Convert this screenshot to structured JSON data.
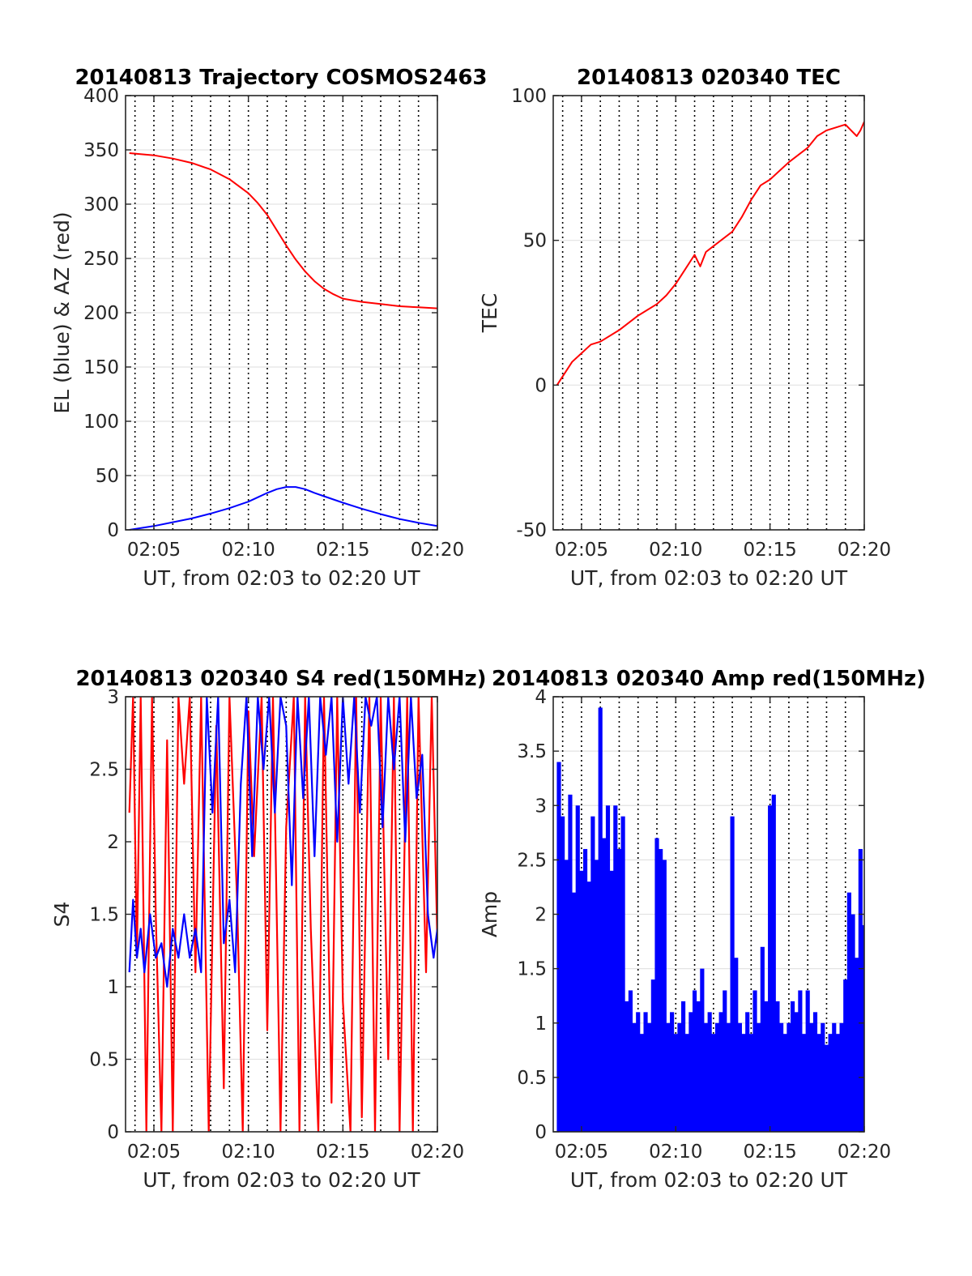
{
  "chart_data": [
    {
      "type": "line",
      "title": "20140813 Trajectory COSMOS2463",
      "xlabel": "UT, from 02:03 to 02:20 UT",
      "ylabel": "EL (blue) & AZ (red)",
      "x_tick_labels": [
        "02:05",
        "02:10",
        "02:15",
        "02:20"
      ],
      "x_tick_minutes": [
        5,
        10,
        15,
        20
      ],
      "xlim_minutes": [
        3.5,
        20.0
      ],
      "ylim": [
        0,
        400
      ],
      "y_ticks": [
        0,
        50,
        100,
        150,
        200,
        250,
        300,
        350,
        400
      ],
      "grid": true,
      "series": [
        {
          "color": "#ff0000",
          "x": [
            3.7,
            5,
            6,
            7,
            8,
            9,
            10,
            10.5,
            11,
            11.5,
            12,
            12.5,
            13,
            13.5,
            14,
            14.5,
            15,
            16,
            17,
            18,
            19,
            20
          ],
          "values": [
            347,
            345,
            342,
            338,
            332,
            323,
            310,
            301,
            290,
            276,
            262,
            249,
            238,
            229,
            222,
            217,
            213,
            210,
            208,
            206,
            205,
            204
          ]
        },
        {
          "color": "#0000ff",
          "x": [
            3.7,
            5,
            6,
            7,
            8,
            9,
            10,
            10.5,
            11,
            11.5,
            12,
            12.5,
            13,
            13.5,
            14,
            15,
            16,
            17,
            18,
            19,
            20
          ],
          "values": [
            0,
            3.5,
            7,
            10.5,
            15,
            20,
            26,
            30,
            34,
            37.5,
            39.5,
            39.5,
            37.5,
            34,
            31,
            25,
            19.5,
            14.5,
            10,
            6.5,
            3.5
          ]
        }
      ]
    },
    {
      "type": "line",
      "title": "20140813 020340 TEC",
      "xlabel": "UT, from 02:03 to 02:20 UT",
      "ylabel": "TEC",
      "x_tick_labels": [
        "02:05",
        "02:10",
        "02:15",
        "02:20"
      ],
      "x_tick_minutes": [
        5,
        10,
        15,
        20
      ],
      "xlim_minutes": [
        3.5,
        20.0
      ],
      "ylim": [
        -50,
        100
      ],
      "y_ticks": [
        -50,
        0,
        50,
        100
      ],
      "grid": true,
      "series": [
        {
          "color": "#ff0000",
          "x": [
            3.7,
            4.5,
            5.0,
            5.5,
            6.0,
            7.0,
            8.0,
            9.0,
            9.5,
            10.0,
            10.5,
            11.0,
            11.3,
            11.6,
            12.0,
            13.0,
            13.5,
            14.0,
            14.5,
            15.0,
            16.0,
            17.0,
            17.5,
            18.0,
            18.5,
            19.0,
            19.3,
            19.6,
            19.8,
            20.0
          ],
          "values": [
            0,
            8,
            11,
            14,
            15,
            19,
            24,
            28,
            31,
            35,
            40,
            45,
            41,
            46,
            48,
            53,
            58,
            64,
            69,
            71,
            77,
            82,
            86,
            88,
            89,
            90,
            88,
            86,
            88,
            91
          ]
        }
      ]
    },
    {
      "type": "line",
      "title": "20140813 020340 S4 red(150MHz)",
      "xlabel": "UT, from 02:03 to 02:20 UT",
      "ylabel": "S4",
      "x_tick_labels": [
        "02:05",
        "02:10",
        "02:15",
        "02:20"
      ],
      "x_tick_minutes": [
        5,
        10,
        15,
        20
      ],
      "xlim_minutes": [
        3.5,
        20.0
      ],
      "ylim": [
        0,
        3
      ],
      "y_ticks": [
        0,
        0.5,
        1,
        1.5,
        2,
        2.5,
        3
      ],
      "grid": true,
      "series": [
        {
          "color": "#ff0000",
          "x": [
            3.7,
            3.9,
            4.1,
            4.3,
            4.6,
            4.9,
            5.1,
            5.4,
            5.7,
            6.0,
            6.3,
            6.6,
            6.9,
            7.2,
            7.5,
            7.9,
            8.3,
            8.7,
            9.0,
            9.4,
            9.7,
            10.0,
            10.3,
            10.7,
            11.0,
            11.3,
            11.7,
            12.0,
            12.4,
            12.7,
            13.0,
            13.3,
            13.7,
            14.0,
            14.4,
            14.7,
            15.0,
            15.4,
            15.7,
            16.0,
            16.4,
            16.7,
            17.0,
            17.4,
            17.7,
            18.0,
            18.4,
            18.7,
            19.0,
            19.4,
            19.7,
            20.0
          ],
          "values": [
            2.2,
            3.0,
            1.2,
            3.0,
            0.0,
            3.0,
            1.5,
            0.0,
            2.7,
            0.0,
            3.0,
            2.4,
            3.0,
            1.1,
            3.0,
            0.0,
            2.8,
            0.3,
            3.0,
            1.6,
            0.0,
            2.9,
            1.9,
            3.0,
            0.7,
            3.0,
            0.0,
            2.1,
            3.0,
            0.0,
            3.0,
            1.4,
            0.0,
            3.0,
            0.2,
            3.0,
            0.9,
            0.0,
            3.0,
            0.1,
            3.0,
            0.0,
            3.0,
            0.5,
            3.0,
            0.0,
            3.0,
            0.0,
            3.0,
            1.1,
            3.0,
            1.3
          ]
        },
        {
          "color": "#0000ff",
          "x": [
            3.7,
            3.9,
            4.1,
            4.3,
            4.5,
            4.8,
            5.1,
            5.4,
            5.7,
            6.0,
            6.3,
            6.6,
            6.9,
            7.2,
            7.5,
            7.8,
            8.1,
            8.4,
            8.7,
            9.0,
            9.3,
            9.6,
            9.9,
            10.2,
            10.5,
            10.8,
            11.1,
            11.4,
            11.7,
            12.0,
            12.3,
            12.6,
            12.9,
            13.2,
            13.5,
            13.8,
            14.1,
            14.4,
            14.7,
            15.0,
            15.3,
            15.6,
            15.9,
            16.2,
            16.5,
            16.8,
            17.1,
            17.4,
            17.7,
            18.0,
            18.3,
            18.6,
            18.9,
            19.2,
            19.5,
            19.8,
            20.0
          ],
          "values": [
            1.1,
            1.6,
            1.2,
            1.4,
            1.1,
            1.5,
            1.2,
            1.3,
            1.0,
            1.4,
            1.2,
            1.5,
            1.2,
            1.4,
            1.1,
            3.0,
            2.2,
            3.0,
            1.3,
            1.6,
            1.1,
            2.4,
            3.0,
            1.9,
            3.0,
            2.5,
            3.0,
            2.2,
            3.0,
            2.8,
            1.7,
            3.0,
            2.3,
            3.0,
            1.9,
            3.0,
            2.6,
            3.0,
            2.0,
            3.0,
            2.4,
            3.0,
            2.2,
            3.0,
            2.8,
            3.0,
            2.1,
            3.0,
            2.5,
            3.0,
            2.0,
            3.0,
            2.3,
            2.6,
            1.5,
            1.2,
            1.4
          ]
        }
      ]
    },
    {
      "type": "bar",
      "title": "20140813 020340 Amp red(150MHz)",
      "xlabel": "UT, from 02:03 to 02:20 UT",
      "ylabel": "Amp",
      "x_tick_labels": [
        "02:05",
        "02:10",
        "02:15",
        "02:20"
      ],
      "x_tick_minutes": [
        5,
        10,
        15,
        20
      ],
      "xlim_minutes": [
        3.5,
        20.0
      ],
      "ylim": [
        0,
        4
      ],
      "y_ticks": [
        0,
        0.5,
        1,
        1.5,
        2,
        2.5,
        3,
        3.5,
        4
      ],
      "grid": true,
      "series": [
        {
          "color": "#0000ff",
          "x": [
            3.8,
            4.0,
            4.2,
            4.4,
            4.6,
            4.8,
            5.0,
            5.2,
            5.4,
            5.6,
            5.8,
            6.0,
            6.2,
            6.4,
            6.6,
            6.8,
            7.0,
            7.2,
            7.4,
            7.6,
            7.8,
            8.0,
            8.2,
            8.4,
            8.6,
            8.8,
            9.0,
            9.2,
            9.4,
            9.6,
            9.8,
            10.0,
            10.2,
            10.4,
            10.6,
            10.8,
            11.0,
            11.2,
            11.4,
            11.6,
            11.8,
            12.0,
            12.2,
            12.4,
            12.6,
            12.8,
            13.0,
            13.2,
            13.4,
            13.6,
            13.8,
            14.0,
            14.2,
            14.4,
            14.6,
            14.8,
            15.0,
            15.2,
            15.4,
            15.6,
            15.8,
            16.0,
            16.2,
            16.4,
            16.6,
            16.8,
            17.0,
            17.2,
            17.4,
            17.6,
            17.8,
            18.0,
            18.2,
            18.4,
            18.6,
            18.8,
            19.0,
            19.2,
            19.4,
            19.6,
            19.8,
            20.0
          ],
          "values": [
            3.4,
            2.9,
            2.5,
            3.1,
            2.2,
            3.0,
            2.4,
            2.6,
            2.3,
            2.9,
            2.5,
            3.9,
            2.7,
            3.0,
            2.4,
            3.0,
            2.6,
            2.9,
            1.2,
            1.3,
            1.0,
            1.1,
            0.9,
            1.1,
            1.0,
            1.4,
            2.7,
            2.6,
            2.5,
            1.0,
            1.1,
            0.9,
            1.0,
            1.2,
            0.9,
            1.1,
            1.3,
            1.2,
            1.5,
            1.0,
            1.1,
            0.9,
            1.0,
            1.1,
            1.3,
            1.0,
            2.9,
            1.6,
            1.0,
            0.9,
            1.1,
            0.9,
            1.3,
            1.0,
            1.7,
            1.2,
            3.0,
            3.1,
            1.2,
            1.0,
            0.9,
            1.0,
            1.2,
            1.1,
            1.3,
            0.9,
            1.3,
            1.0,
            1.1,
            0.9,
            1.0,
            0.8,
            0.9,
            1.0,
            0.9,
            1.0,
            1.4,
            2.2,
            2.0,
            1.6,
            2.6,
            1.9
          ]
        }
      ]
    }
  ]
}
